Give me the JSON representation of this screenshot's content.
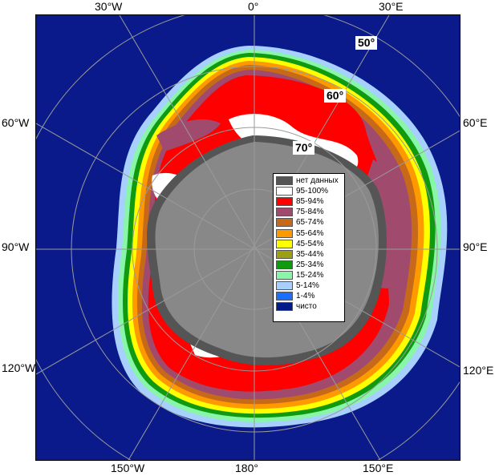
{
  "edge_labels": {
    "top": [
      "30°W",
      "0°",
      "30°E"
    ],
    "left": [
      "60°W",
      "90°W",
      "120°W"
    ],
    "right": [
      "60°E",
      "90°E",
      "120°E"
    ],
    "bottom": [
      "150°W",
      "180°",
      "150°E"
    ]
  },
  "lat_labels": [
    "50°",
    "60°",
    "70°"
  ],
  "legend": [
    {
      "label": "нет данных",
      "color": "#555555"
    },
    {
      "label": "95-100%",
      "color": "#ffffff"
    },
    {
      "label": "85-94%",
      "color": "#ff0000"
    },
    {
      "label": "75-84%",
      "color": "#a04a6e"
    },
    {
      "label": "65-74%",
      "color": "#c66a1a"
    },
    {
      "label": "55-64%",
      "color": "#ff9900"
    },
    {
      "label": "45-54%",
      "color": "#ffff00"
    },
    {
      "label": "35-44%",
      "color": "#9aa012"
    },
    {
      "label": "25-34%",
      "color": "#109a10"
    },
    {
      "label": "15-24%",
      "color": "#88f5a8"
    },
    {
      "label": "5-14%",
      "color": "#a8d0ff"
    },
    {
      "label": "1-4%",
      "color": "#1a6fff"
    },
    {
      "label": "чисто",
      "color": "#001a8a"
    }
  ],
  "colors": {
    "ocean": "#0a1a8a",
    "land": "#888888",
    "no_data": "#555555",
    "grid": "#9a9a9a"
  }
}
